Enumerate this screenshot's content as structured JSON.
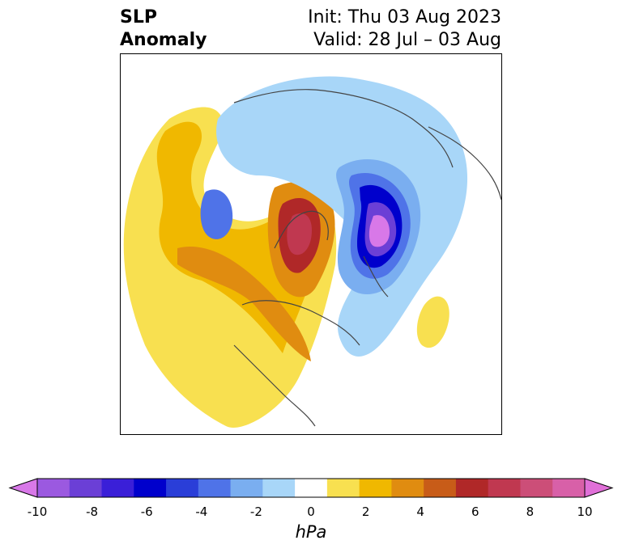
{
  "title": {
    "left_line1": "SLP",
    "left_line2": "Anomaly",
    "right_line1": "Init: Thu 03 Aug 2023",
    "right_line2": "Valid: 28 Jul – 03 Aug"
  },
  "colorbar": {
    "units": "hPa",
    "tick_labels": [
      "-10",
      "-8",
      "-6",
      "-4",
      "-2",
      "0",
      "2",
      "4",
      "6",
      "8",
      "10"
    ],
    "colors": [
      "#d878e8",
      "#9b59e0",
      "#6b3fd6",
      "#3a1fd8",
      "#0000cc",
      "#2a3ed8",
      "#4f73e8",
      "#7aaef0",
      "#a8d6f8",
      "#ffffff",
      "#f8e050",
      "#f0b800",
      "#e08c10",
      "#c85c18",
      "#b02828",
      "#c03850",
      "#cc4e78",
      "#d860a8",
      "#e070d8"
    ]
  },
  "map": {
    "projection": "north-polar-stereographic",
    "variable": "sea-level-pressure-anomaly"
  }
}
